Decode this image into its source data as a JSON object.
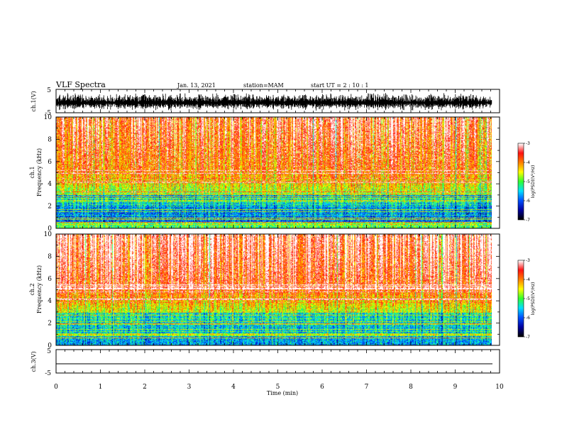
{
  "header": {
    "title": "VLF Spectra",
    "date": "Jan. 13, 2021",
    "station": "station=MAM",
    "start_ut": "start  UT =   2 : 10 : 1"
  },
  "chart_data": [
    {
      "type": "line",
      "name": "ch1-waveform",
      "ylabel": "ch.1(V)",
      "ylim": [
        -5,
        5
      ],
      "yticks": [
        5,
        -5
      ],
      "xlim": [
        0,
        10
      ],
      "description_of_signal": "noisy waveform",
      "amplitude_range": [
        -5,
        5
      ]
    },
    {
      "type": "heatmap",
      "name": "ch1-spectrogram",
      "ylabel": "ch.1\nFrequency  (kHz)",
      "ylabel_line1": "ch.1",
      "ylabel_line2": "Frequency  (kHz)",
      "ylim": [
        0,
        10
      ],
      "yticks": [
        0,
        2,
        4,
        6,
        8,
        10
      ],
      "xlim": [
        0,
        9.83
      ],
      "colorbar": {
        "label": "log(PSD)(V²/Hz)",
        "range": [
          -7,
          -3
        ],
        "ticks": [
          -3,
          -4,
          -5,
          -6,
          -7
        ]
      }
    },
    {
      "type": "heatmap",
      "name": "ch2-spectrogram",
      "ylabel_line1": "ch.2",
      "ylabel_line2": "Frequency  (kHz)",
      "ylim": [
        0,
        10
      ],
      "yticks": [
        0,
        2,
        4,
        6,
        8,
        10
      ],
      "xlim": [
        0,
        9.83
      ],
      "colorbar": {
        "label": "log(PSD)(V²/Hz)",
        "range": [
          -7,
          -3
        ],
        "ticks": [
          -3,
          -4,
          -5,
          -6,
          -7
        ]
      }
    },
    {
      "type": "line",
      "name": "ch3-waveform",
      "ylabel": "ch.3(V)",
      "ylim": [
        -5,
        5
      ],
      "yticks": [
        5,
        -5
      ],
      "x": [
        0,
        9.83
      ],
      "y": [
        -1.8,
        -1.8
      ]
    }
  ],
  "x_axis": {
    "label": "Time  (min)",
    "ticks": [
      "0",
      "1",
      "2",
      "3",
      "4",
      "5",
      "6",
      "7",
      "8",
      "9",
      "10"
    ]
  },
  "colors": {
    "colormap": [
      "#000000",
      "#0000a0",
      "#0050ff",
      "#00e0ff",
      "#30ff30",
      "#ffff00",
      "#ff8000",
      "#ff1010",
      "#ffffff"
    ]
  }
}
